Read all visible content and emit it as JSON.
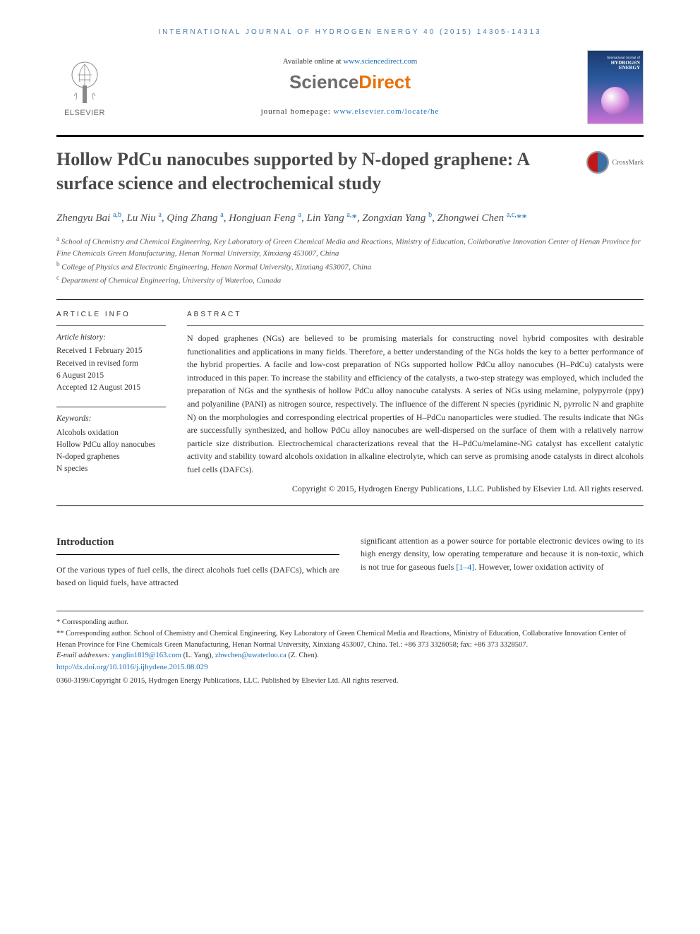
{
  "journal_header": "INTERNATIONAL JOURNAL OF HYDROGEN ENERGY 40 (2015) 14305-14313",
  "available_prefix": "Available online at ",
  "available_link": "www.sciencedirect.com",
  "sciencedirect": {
    "part1": "Science",
    "part2": "Direct"
  },
  "homepage_prefix": "journal homepage: ",
  "homepage_link": "www.elsevier.com/locate/he",
  "elsevier_label": "ELSEVIER",
  "cover": {
    "line1": "International Journal of",
    "line2": "HYDROGEN",
    "line3": "ENERGY"
  },
  "crossmark_label": "CrossMark",
  "title": "Hollow PdCu nanocubes supported by N-doped graphene: A surface science and electrochemical study",
  "authors_html": "Zhengyu Bai <sup>a,b</sup>, Lu Niu <sup>a</sup>, Qing Zhang <sup>a</sup>, Hongjuan Feng <sup>a</sup>, Lin Yang <sup>a,</sup><span class='star'>*</span>, Zongxian Yang <sup>b</sup>, Zhongwei Chen <sup>a,c,</sup><span class='star'>**</span>",
  "affiliations": {
    "a": "School of Chemistry and Chemical Engineering, Key Laboratory of Green Chemical Media and Reactions, Ministry of Education, Collaborative Innovation Center of Henan Province for Fine Chemicals Green Manufacturing, Henan Normal University, Xinxiang 453007, China",
    "b": "College of Physics and Electronic Engineering, Henan Normal University, Xinxiang 453007, China",
    "c": "Department of Chemical Engineering, University of Waterloo, Canada"
  },
  "info_heading": "ARTICLE INFO",
  "history": {
    "label": "Article history:",
    "received": "Received 1 February 2015",
    "revised1": "Received in revised form",
    "revised2": "6 August 2015",
    "accepted": "Accepted 12 August 2015"
  },
  "keywords": {
    "label": "Keywords:",
    "items": [
      "Alcohols oxidation",
      "Hollow PdCu alloy nanocubes",
      "N-doped graphenes",
      "N species"
    ]
  },
  "abstract_heading": "ABSTRACT",
  "abstract": "N doped graphenes (NGs) are believed to be promising materials for constructing novel hybrid composites with desirable functionalities and applications in many fields. Therefore, a better understanding of the NGs holds the key to a better performance of the hybrid properties. A facile and low-cost preparation of NGs supported hollow PdCu alloy nanocubes (H–PdCu) catalysts were introduced in this paper. To increase the stability and efficiency of the catalysts, a two-step strategy was employed, which included the preparation of NGs and the synthesis of hollow PdCu alloy nanocube catalysts. A series of NGs using melamine, polypyrrole (ppy) and polyaniline (PANI) as nitrogen source, respectively. The influence of the different N species (pyridinic N, pyrrolic N and graphite N) on the morphologies and corresponding electrical properties of H–PdCu nanoparticles were studied. The results indicate that NGs are successfully synthesized, and hollow PdCu alloy nanocubes are well-dispersed on the surface of them with a relatively narrow particle size distribution. Electrochemical characterizations reveal that the H–PdCu/melamine-NG catalyst has excellent catalytic activity and stability toward alcohols oxidation in alkaline electrolyte, which can serve as promising anode catalysts in direct alcohols fuel cells (DAFCs).",
  "abstract_copyright": "Copyright © 2015, Hydrogen Energy Publications, LLC. Published by Elsevier Ltd. All rights reserved.",
  "intro_heading": "Introduction",
  "intro_col1": "Of the various types of fuel cells, the direct alcohols fuel cells (DAFCs), which are based on liquid fuels, have attracted",
  "intro_col2_prefix": "significant attention as a power source for portable electronic devices owing to its high energy density, low operating temperature and because it is non-toxic, which is not true for gaseous fuels ",
  "intro_col2_ref": "[1–4]",
  "intro_col2_suffix": ". However, lower oxidation activity of",
  "footer": {
    "corr1": "* Corresponding author.",
    "corr2": "** Corresponding author. School of Chemistry and Chemical Engineering, Key Laboratory of Green Chemical Media and Reactions, Ministry of Education, Collaborative Innovation Center of Henan Province for Fine Chemicals Green Manufacturing, Henan Normal University, Xinxiang 453007, China. Tel.: +86 373 3326058; fax: +86 373 3328507.",
    "email_label": "E-mail addresses: ",
    "email1": "yanglin1819@163.com",
    "email1_name": " (L. Yang), ",
    "email2": "zhwchen@uwaterloo.ca",
    "email2_name": " (Z. Chen).",
    "doi": "http://dx.doi.org/10.1016/j.ijhydene.2015.08.029",
    "issn_copyright": "0360-3199/Copyright © 2015, Hydrogen Energy Publications, LLC. Published by Elsevier Ltd. All rights reserved."
  },
  "colors": {
    "link": "#1a6bb3",
    "title_text": "#4a4a4a",
    "orange": "#e8710a",
    "gray": "#6b6b6b"
  }
}
